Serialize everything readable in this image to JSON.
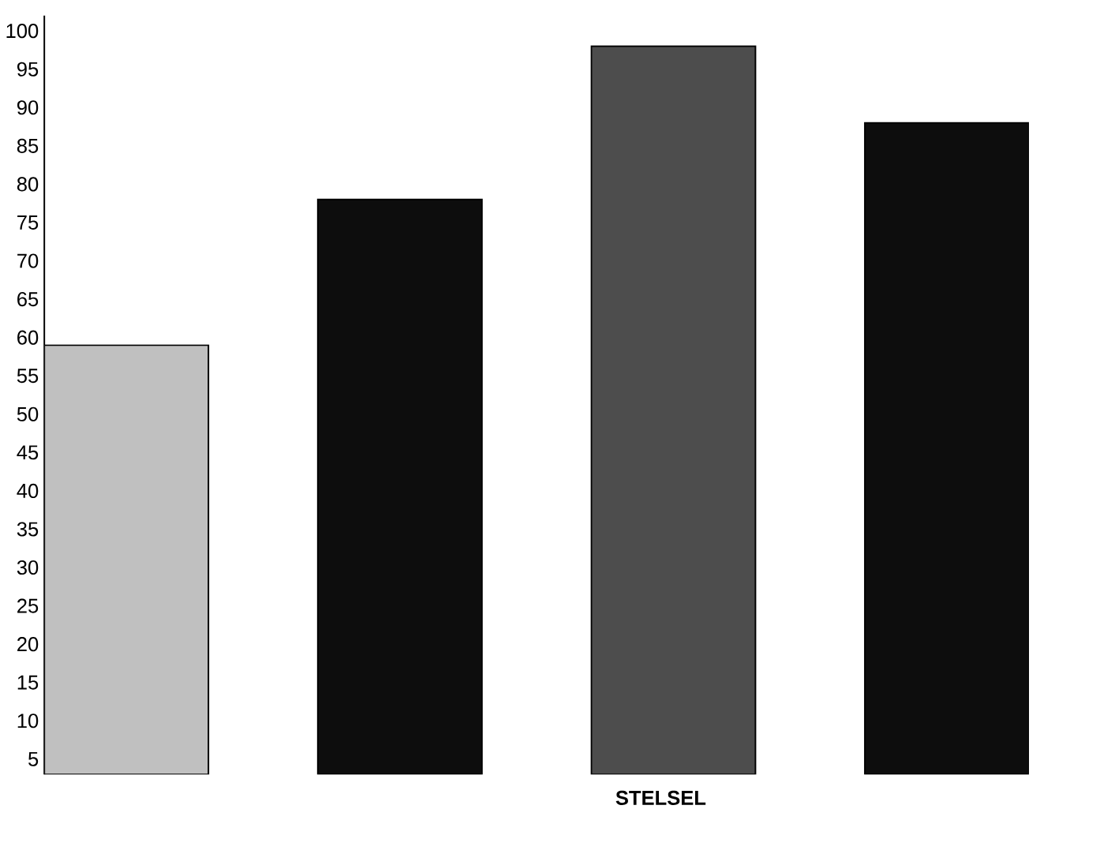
{
  "chart_data": {
    "type": "bar",
    "xlabel": "STELSEL",
    "categories": [
      null,
      null,
      null,
      null
    ],
    "series": [
      {
        "values": [
          59,
          78,
          98,
          88
        ],
        "colors": [
          "#c0c0c0",
          "#0d0d0d",
          "#4d4d4d",
          "#0d0d0d"
        ]
      }
    ],
    "ylim": [
      3,
      102
    ],
    "yticks": [
      5,
      10,
      15,
      20,
      25,
      30,
      35,
      40,
      45,
      50,
      55,
      60,
      65,
      70,
      75,
      80,
      85,
      90,
      95,
      100
    ]
  }
}
